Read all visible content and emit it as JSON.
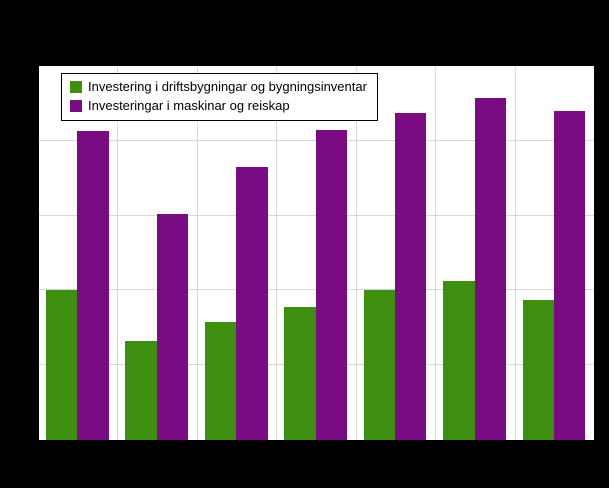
{
  "chart": {
    "background": "#000000",
    "plot_background": "#ffffff",
    "gridline_color": "#d9d9d9"
  },
  "legend": {
    "items": [
      {
        "label": "Investering i driftsbygningar og bygningsinventar",
        "color": "#3e8f0f"
      },
      {
        "label": "Investeringar i maskinar og reiskap",
        "color": "#7a0c83"
      }
    ]
  },
  "chart_data": {
    "type": "bar",
    "categories": [
      "",
      "",
      "",
      "",
      "",
      "",
      ""
    ],
    "series": [
      {
        "name": "Investering i driftsbygningar og bygningsinventar",
        "color": "#3e8f0f",
        "values": [
          400,
          265,
          315,
          355,
          400,
          425,
          375
        ]
      },
      {
        "name": "Investeringar i maskinar og reiskap",
        "color": "#7a0c83",
        "values": [
          825,
          605,
          730,
          830,
          875,
          915,
          880
        ]
      }
    ],
    "title": "",
    "xlabel": "",
    "ylabel": "",
    "ylim": [
      0,
      1000
    ],
    "grid": true,
    "legend_position": "top-left-inside",
    "note": "axis tick labels not visible in image (black on black frame); values estimated from gridlines on a 0-1000 relative scale"
  }
}
